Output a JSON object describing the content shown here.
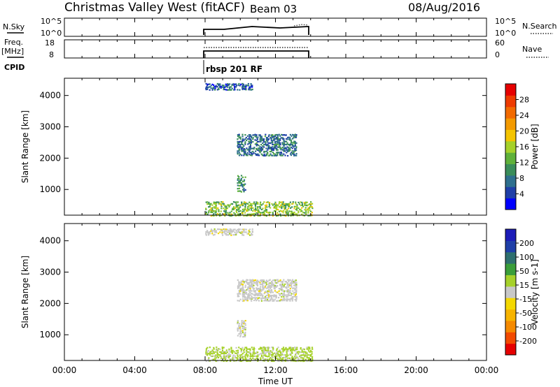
{
  "header": {
    "title": "Christmas Valley West (fitACF)",
    "beam": "Beam 03",
    "date": "08/Aug/2016"
  },
  "panels": {
    "nsky": {
      "label": "N.Sky",
      "tick_high": "10^5",
      "tick_low": "10^0",
      "right_tick_high": "10^5",
      "right_tick_low": "10^0",
      "right_label": "N.Search"
    },
    "freq": {
      "label": "Freq.",
      "unit": "[MHz]",
      "tick_high": "18",
      "tick_low": "8",
      "right_tick_high": "60",
      "right_tick_low": "0",
      "right_label": "Nave"
    },
    "cpid": {
      "label": "CPID",
      "mode_text": "rbsp 201 RF"
    }
  },
  "colors": {
    "power": [
      "#0000ff",
      "#1f3fa8",
      "#2e6f8e",
      "#3a8d5a",
      "#5fb13a",
      "#a6d12a",
      "#f4c400",
      "#f39a00",
      "#f26a00",
      "#ee3b00",
      "#e60000"
    ],
    "velocity": [
      "#e60000",
      "#f24a00",
      "#f58a00",
      "#f7b400",
      "#f4d800",
      "#c8c8c8",
      "#a6d12a",
      "#3a9e3a",
      "#2e6f6f",
      "#1f3fa8",
      "#1c1cb8"
    ]
  },
  "chart_data": [
    {
      "type": "heatmap",
      "name": "power",
      "title": "",
      "xlabel": "",
      "ylabel": "Slant Range [km]",
      "xlim": [
        0,
        24
      ],
      "ylim": [
        180,
        4550
      ],
      "y_ticks": [
        "1000",
        "2000",
        "3000",
        "4000"
      ],
      "colorbar": {
        "label": "Power [dB]",
        "ticks": [
          "4",
          "8",
          "12",
          "16",
          "20",
          "24",
          "28"
        ],
        "range": [
          0,
          32
        ]
      },
      "regions": [
        {
          "t0": 8.0,
          "t1": 14.1,
          "r0": 180,
          "r1": 650,
          "value": 14
        },
        {
          "t0": 9.8,
          "t1": 10.3,
          "r0": 950,
          "r1": 1500,
          "value": 9
        },
        {
          "t0": 9.8,
          "t1": 13.2,
          "r0": 2100,
          "r1": 2800,
          "value": 7
        },
        {
          "t0": 8.0,
          "t1": 10.7,
          "r0": 4200,
          "r1": 4420,
          "value": 5
        }
      ]
    },
    {
      "type": "heatmap",
      "name": "velocity",
      "title": "",
      "xlabel": "Time UT",
      "ylabel": "Slant Range [km]",
      "xlim": [
        0,
        24
      ],
      "ylim": [
        180,
        4550
      ],
      "x_ticks": [
        "00:00",
        "04:00",
        "08:00",
        "12:00",
        "16:00",
        "20:00",
        "00:00"
      ],
      "y_ticks": [
        "1000",
        "2000",
        "3000",
        "4000"
      ],
      "colorbar": {
        "label": "Velocity [m s-1]",
        "ticks": [
          "-200",
          "-100",
          "-50",
          "-15",
          "15",
          "50",
          "100",
          "200"
        ],
        "range": [
          -250,
          250
        ]
      },
      "regions": [
        {
          "t0": 8.0,
          "t1": 14.1,
          "r0": 180,
          "r1": 650,
          "value": 40
        },
        {
          "t0": 9.8,
          "t1": 10.3,
          "r0": 950,
          "r1": 1500,
          "value": 0
        },
        {
          "t0": 9.8,
          "t1": 13.2,
          "r0": 2100,
          "r1": 2800,
          "value": 0
        },
        {
          "t0": 8.0,
          "t1": 10.7,
          "r0": 4200,
          "r1": 4420,
          "value": 0
        }
      ]
    }
  ]
}
